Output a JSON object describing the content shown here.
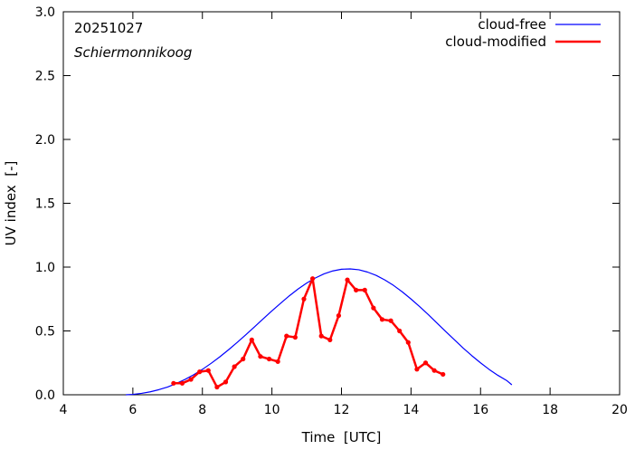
{
  "chart_data": {
    "type": "line",
    "title": "",
    "annotations": [
      "20251027",
      "Schiermonnikoog"
    ],
    "xlabel": "Time  [UTC]",
    "ylabel": "UV index  [-]",
    "xlim": [
      4,
      20
    ],
    "ylim": [
      0,
      3
    ],
    "xticks": [
      4,
      6,
      8,
      10,
      12,
      14,
      16,
      18,
      20
    ],
    "yticks": [
      0.0,
      0.5,
      1.0,
      1.5,
      2.0,
      2.5,
      3.0
    ],
    "grid": false,
    "legend_position": "top-right",
    "series": [
      {
        "name": "cloud-free",
        "color": "#0000ff",
        "markers": false,
        "x": [
          5.8,
          6.0,
          6.25,
          6.5,
          6.75,
          7.0,
          7.25,
          7.5,
          7.75,
          8.0,
          8.25,
          8.5,
          8.75,
          9.0,
          9.25,
          9.5,
          9.75,
          10.0,
          10.25,
          10.5,
          10.75,
          11.0,
          11.25,
          11.5,
          11.75,
          12.0,
          12.25,
          12.5,
          12.75,
          13.0,
          13.25,
          13.5,
          13.75,
          14.0,
          14.25,
          14.5,
          14.75,
          15.0,
          15.25,
          15.5,
          15.75,
          16.0,
          16.25,
          16.5,
          16.75,
          16.9
        ],
        "y": [
          0.0,
          0.003,
          0.011,
          0.023,
          0.04,
          0.061,
          0.088,
          0.12,
          0.157,
          0.199,
          0.246,
          0.297,
          0.352,
          0.41,
          0.47,
          0.532,
          0.595,
          0.657,
          0.717,
          0.775,
          0.828,
          0.875,
          0.915,
          0.947,
          0.97,
          0.983,
          0.986,
          0.979,
          0.961,
          0.935,
          0.899,
          0.856,
          0.806,
          0.75,
          0.69,
          0.627,
          0.561,
          0.495,
          0.43,
          0.366,
          0.306,
          0.25,
          0.198,
          0.152,
          0.112,
          0.078
        ]
      },
      {
        "name": "cloud-modified",
        "color": "#ff0000",
        "markers": true,
        "x": [
          7.17,
          7.42,
          7.67,
          7.92,
          8.17,
          8.42,
          8.67,
          8.92,
          9.17,
          9.42,
          9.67,
          9.92,
          10.17,
          10.42,
          10.67,
          10.92,
          11.17,
          11.42,
          11.67,
          11.92,
          12.17,
          12.42,
          12.67,
          12.92,
          13.17,
          13.42,
          13.67,
          13.92,
          14.17,
          14.42,
          14.67,
          14.92
        ],
        "y": [
          0.09,
          0.09,
          0.12,
          0.18,
          0.19,
          0.06,
          0.1,
          0.22,
          0.28,
          0.43,
          0.3,
          0.28,
          0.26,
          0.46,
          0.45,
          0.75,
          0.91,
          0.46,
          0.43,
          0.62,
          0.9,
          0.82,
          0.82,
          0.68,
          0.59,
          0.58,
          0.5,
          0.41,
          0.2,
          0.25,
          0.19,
          0.16
        ]
      }
    ]
  }
}
